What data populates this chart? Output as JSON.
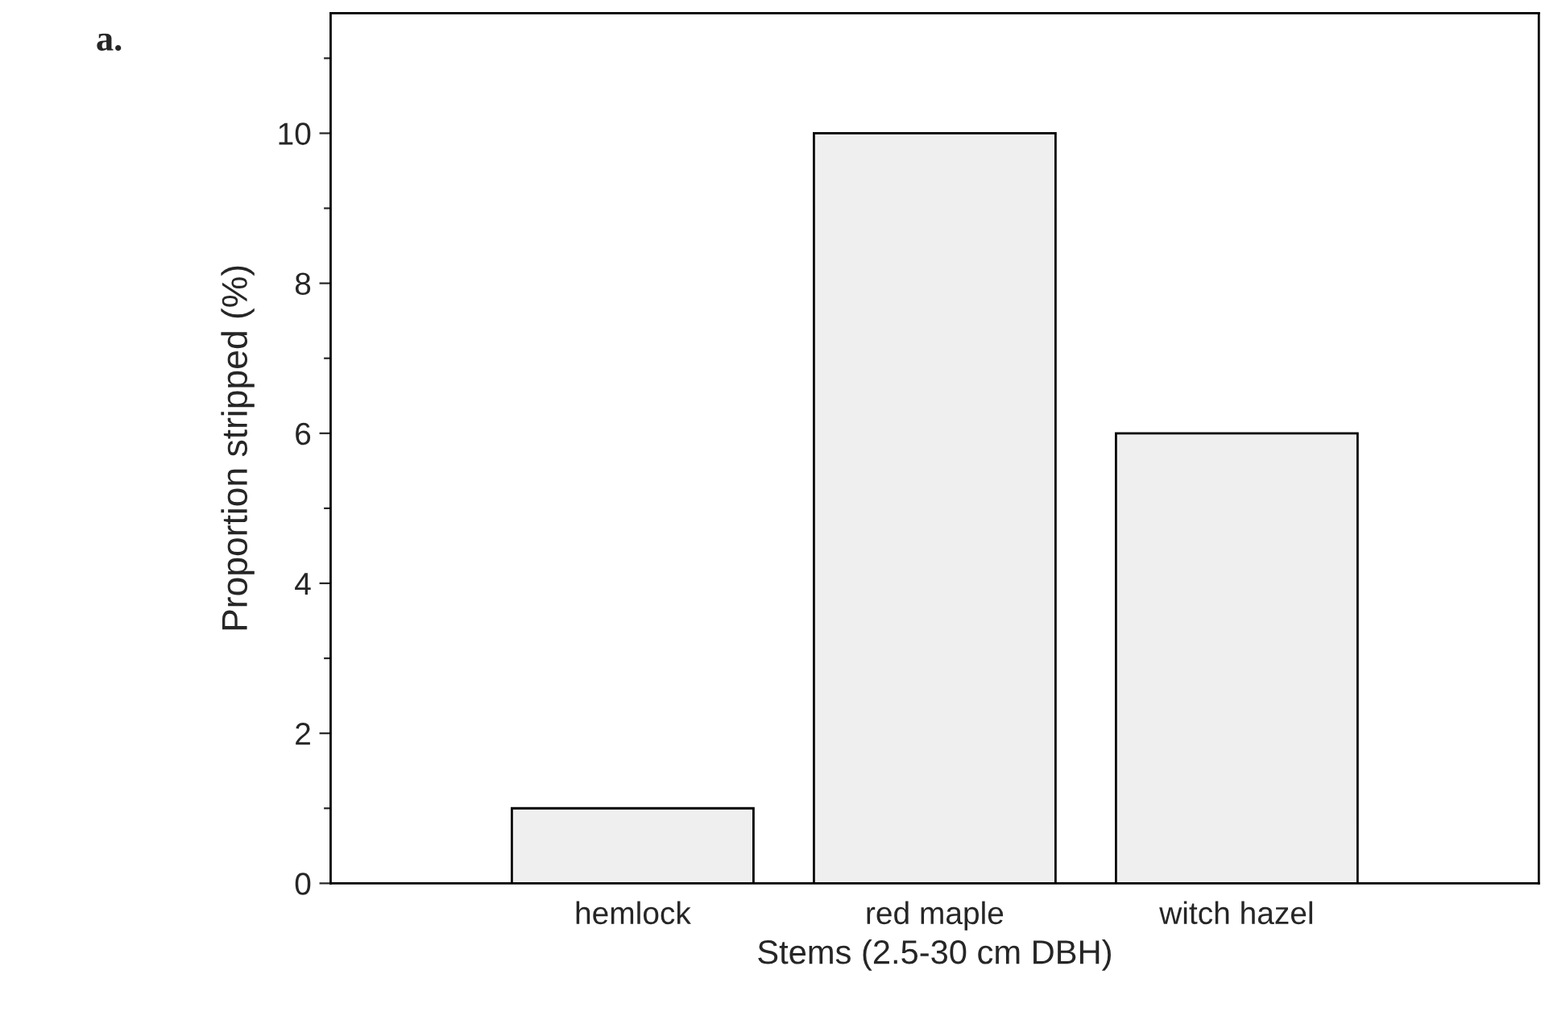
{
  "chart_data": {
    "type": "bar",
    "xlabel": "Stems (2.5-30 cm DBH)",
    "ylabel": "Proportion stripped (%)",
    "annotations": [
      "a."
    ],
    "categories": [
      "hemlock",
      "red maple",
      "witch hazel"
    ],
    "values": [
      1,
      10,
      6
    ],
    "color": "#efefef",
    "ylim": [
      0,
      11.6
    ],
    "yticks": [
      0,
      {
        "value": 1,
        "label": null
      },
      2,
      {
        "value": 3,
        "label": null
      },
      4,
      {
        "value": 5,
        "label": null
      },
      6,
      {
        "value": 7,
        "label": null
      },
      8,
      {
        "value": 9,
        "label": null
      },
      10,
      {
        "value": 11,
        "label": null
      }
    ],
    "grid": false,
    "legend": false
  }
}
